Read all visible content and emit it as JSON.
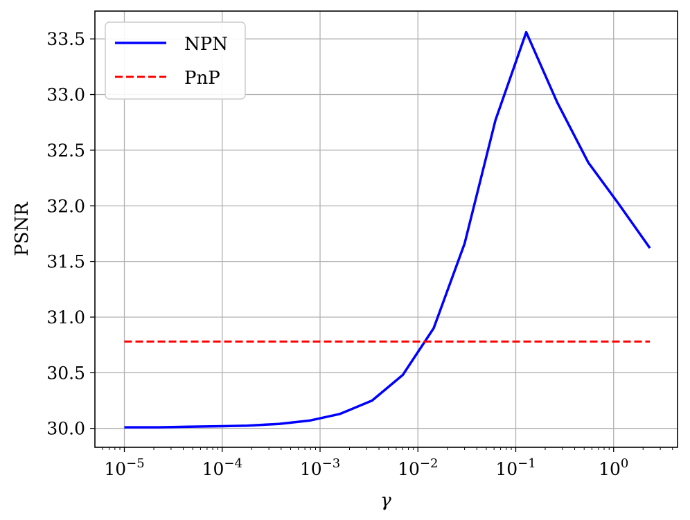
{
  "chart_data": {
    "type": "line",
    "xlabel": "γ",
    "ylabel": "PSNR",
    "xscale": "log",
    "xlim": [
      5e-06,
      4.5
    ],
    "ylim": [
      29.83,
      33.75
    ],
    "grid": true,
    "legend_position": "top-left",
    "x_ticks": [
      {
        "value": 1e-05,
        "base": "10",
        "exp": "−5"
      },
      {
        "value": 0.0001,
        "base": "10",
        "exp": "−4"
      },
      {
        "value": 0.001,
        "base": "10",
        "exp": "−3"
      },
      {
        "value": 0.01,
        "base": "10",
        "exp": "−2"
      },
      {
        "value": 0.1,
        "base": "10",
        "exp": "−1"
      },
      {
        "value": 1,
        "base": "10",
        "exp": "0"
      }
    ],
    "y_ticks": [
      "30.0",
      "30.5",
      "31.0",
      "31.5",
      "32.0",
      "32.5",
      "33.0",
      "33.5"
    ],
    "series": [
      {
        "name": "NPN",
        "color": "#0000ff",
        "style": "solid",
        "x": [
          1e-05,
          2.2e-05,
          4.6e-05,
          0.0001,
          0.00018,
          0.00038,
          0.00078,
          0.0016,
          0.0034,
          0.007,
          0.0145,
          0.03,
          0.062,
          0.128,
          0.265,
          0.55,
          1.12,
          2.35
        ],
        "y": [
          30.01,
          30.01,
          30.015,
          30.02,
          30.025,
          30.04,
          30.07,
          30.13,
          30.25,
          30.48,
          30.9,
          31.66,
          32.77,
          33.56,
          32.93,
          32.39,
          32.02,
          31.62
        ]
      },
      {
        "name": "PnP",
        "color": "#ff0000",
        "style": "dashed",
        "x": [
          1e-05,
          2.35
        ],
        "y": [
          30.78,
          30.78
        ]
      }
    ]
  }
}
